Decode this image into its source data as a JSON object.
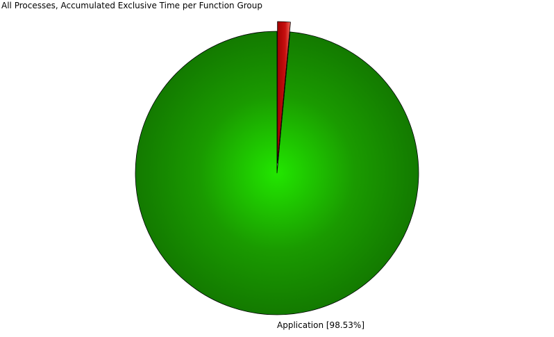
{
  "chart_data": {
    "type": "pie",
    "title": "All Processes, Accumulated Exclusive Time per Function Group",
    "start_position": "top",
    "direction": "counter-clockwise",
    "slices": [
      {
        "name": "Application",
        "value": 98.53,
        "label": "Application [98.53%]",
        "color": "#1a9a00",
        "highlight": "#22e600",
        "shade": "#137a00",
        "exploded": false,
        "label_shown": true
      },
      {
        "name": "",
        "value": 1.47,
        "label": "",
        "color": "#c81010",
        "highlight": "#f06a5a",
        "shade": "#a00000",
        "exploded": true,
        "label_shown": false
      }
    ],
    "legend": "none",
    "grid": false
  }
}
